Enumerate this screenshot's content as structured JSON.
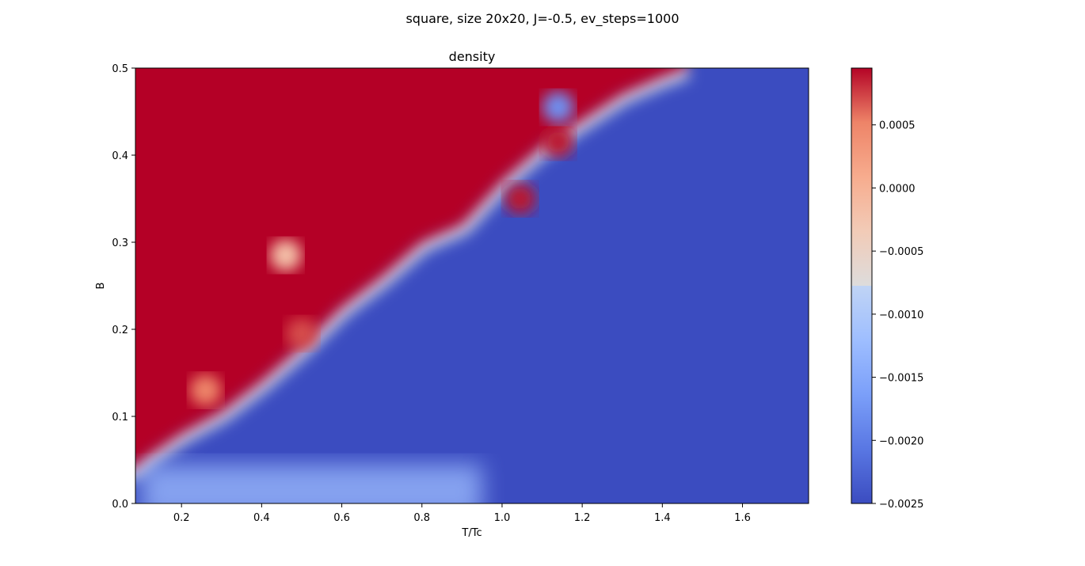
{
  "chart_data": {
    "type": "heatmap",
    "suptitle": "square, size 20x20, J=-0.5, ev_steps=1000",
    "title": "density",
    "xlabel": "T/Tc",
    "ylabel": "B",
    "xlim": [
      0.085,
      1.765
    ],
    "ylim": [
      0.0,
      0.5
    ],
    "xticks": [
      0.2,
      0.4,
      0.6,
      0.8,
      1.0,
      1.2,
      1.4,
      1.6
    ],
    "xtick_labels": [
      "0.2",
      "0.4",
      "0.6",
      "0.8",
      "1.0",
      "1.2",
      "1.4",
      "1.6"
    ],
    "yticks": [
      0.0,
      0.1,
      0.2,
      0.3,
      0.4,
      0.5
    ],
    "ytick_labels": [
      "0.0",
      "0.1",
      "0.2",
      "0.3",
      "0.4",
      "0.5"
    ],
    "colormap": "coolwarm",
    "colorbar": {
      "vmin": -0.0025,
      "vmax": 0.00095,
      "ticks": [
        0.0005,
        0.0,
        -0.0005,
        -0.001,
        -0.0015,
        -0.002,
        -0.0025
      ],
      "tick_labels": [
        "0.0005",
        "0.0000",
        "−0.0005",
        "−0.0010",
        "−0.0015",
        "−0.0020",
        "−0.0025"
      ]
    },
    "boundary": {
      "description": "interface between high-density (red) region at low T/Tc and low-density (blue) region",
      "T": [
        0.085,
        0.12,
        0.2,
        0.3,
        0.4,
        0.5,
        0.6,
        0.7,
        0.8,
        0.9,
        1.0,
        1.1,
        1.2,
        1.3,
        1.4,
        1.46
      ],
      "B": [
        0.04,
        0.055,
        0.08,
        0.105,
        0.14,
        0.18,
        0.225,
        0.26,
        0.3,
        0.32,
        0.37,
        0.41,
        0.44,
        0.47,
        0.49,
        0.5
      ]
    },
    "low_density_band": {
      "description": "lighter blue band near B=0 for low T/Tc",
      "T_range": [
        0.1,
        0.95
      ],
      "B_range": [
        0.0,
        0.045
      ]
    },
    "blobs": [
      {
        "T": 0.46,
        "B": 0.285,
        "value": -0.0002
      },
      {
        "T": 1.045,
        "B": 0.35,
        "value": 0.0009
      },
      {
        "T": 1.14,
        "B": 0.415,
        "value": 0.0009
      },
      {
        "T": 1.14,
        "B": 0.455,
        "value": -0.0018
      },
      {
        "T": 0.26,
        "B": 0.13,
        "value": 0.0005
      },
      {
        "T": 0.5,
        "B": 0.195,
        "value": 0.0007
      }
    ]
  }
}
